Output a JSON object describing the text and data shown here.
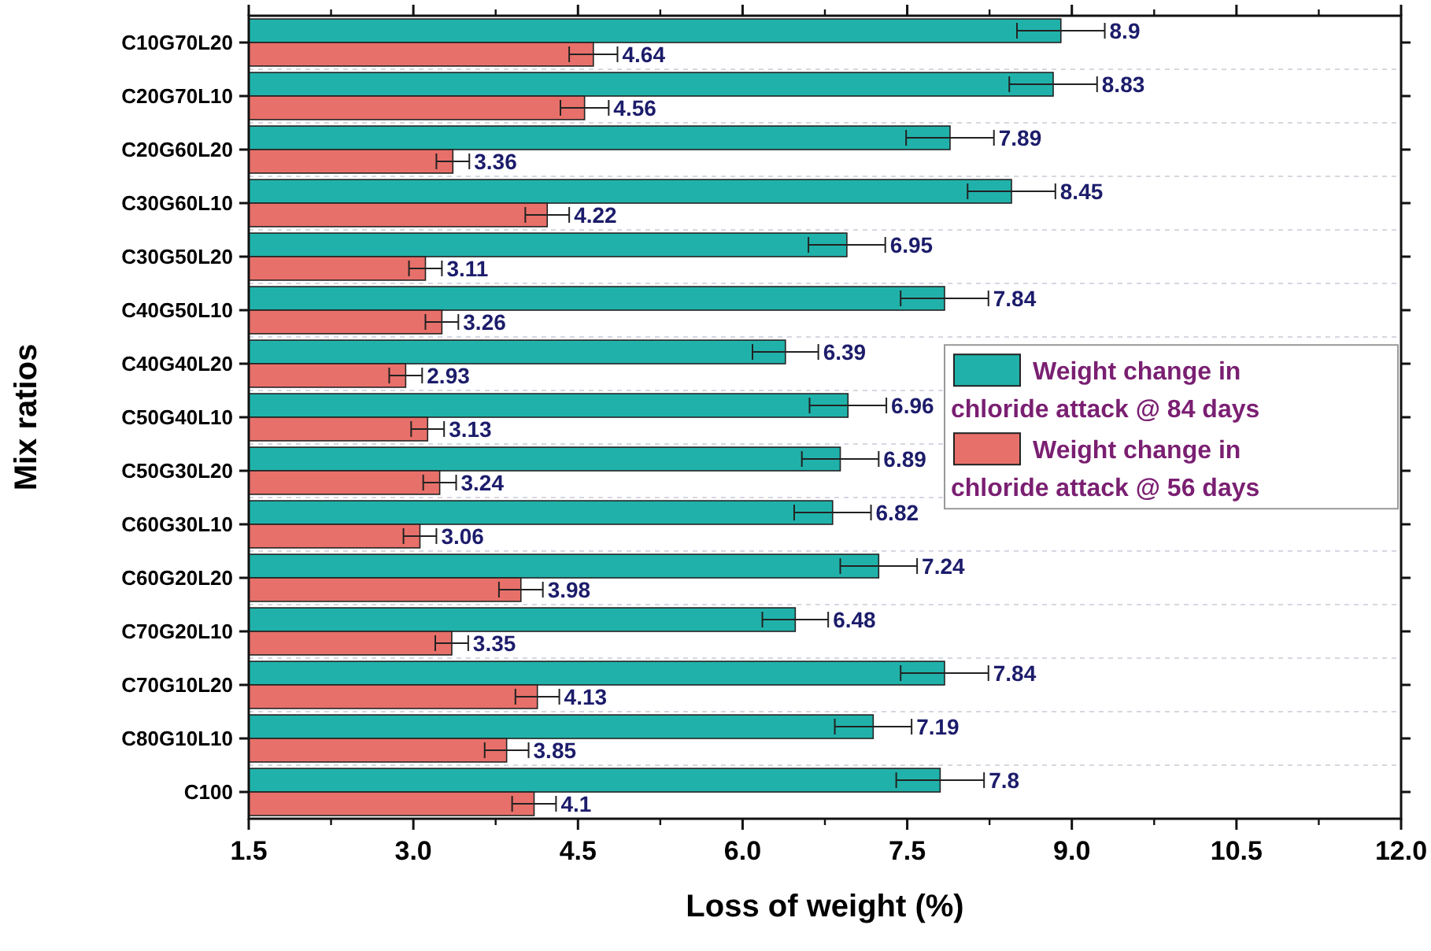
{
  "chart_data": {
    "type": "bar",
    "orientation": "horizontal",
    "xlabel": "Loss of weight (%)",
    "ylabel": "Mix ratios",
    "categories": [
      "C10G70L20",
      "C20G70L10",
      "C20G60L20",
      "C30G60L10",
      "C30G50L20",
      "C40G50L10",
      "C40G40L20",
      "C50G40L10",
      "C50G30L20",
      "C60G30L10",
      "C60G20L20",
      "C70G20L10",
      "C70G10L20",
      "C80G10L10",
      "C100"
    ],
    "series": [
      {
        "name": "Weight change in chloride attack @ 84 days",
        "color": "#20b2aa",
        "values": [
          8.9,
          8.83,
          7.89,
          8.45,
          6.95,
          7.84,
          6.39,
          6.96,
          6.89,
          6.82,
          7.24,
          6.48,
          7.84,
          7.19,
          7.8
        ],
        "errors": [
          0.4,
          0.4,
          0.4,
          0.4,
          0.35,
          0.4,
          0.3,
          0.35,
          0.35,
          0.35,
          0.35,
          0.3,
          0.4,
          0.35,
          0.4
        ]
      },
      {
        "name": "Weight change in chloride attack @ 56 days",
        "color": "#e8706a",
        "values": [
          4.64,
          4.56,
          3.36,
          4.22,
          3.11,
          3.26,
          2.93,
          3.13,
          3.24,
          3.06,
          3.98,
          3.35,
          4.13,
          3.85,
          4.1
        ],
        "errors": [
          0.22,
          0.22,
          0.15,
          0.2,
          0.15,
          0.15,
          0.15,
          0.15,
          0.15,
          0.15,
          0.2,
          0.15,
          0.2,
          0.2,
          0.2
        ]
      }
    ],
    "xlim": [
      1.5,
      12.0
    ],
    "xticks": [
      {
        "value": 1.5,
        "label": "1.5"
      },
      {
        "value": 3,
        "label": "3.0"
      },
      {
        "value": 4.5,
        "label": "4.5"
      },
      {
        "value": 6,
        "label": "6.0"
      },
      {
        "value": 7.5,
        "label": "7.5"
      },
      {
        "value": 9,
        "label": "9.0"
      },
      {
        "value": 10.5,
        "label": "10.5"
      },
      {
        "value": 12,
        "label": "12.0"
      }
    ],
    "data_labels": true,
    "grid": "y",
    "legend": "right"
  }
}
